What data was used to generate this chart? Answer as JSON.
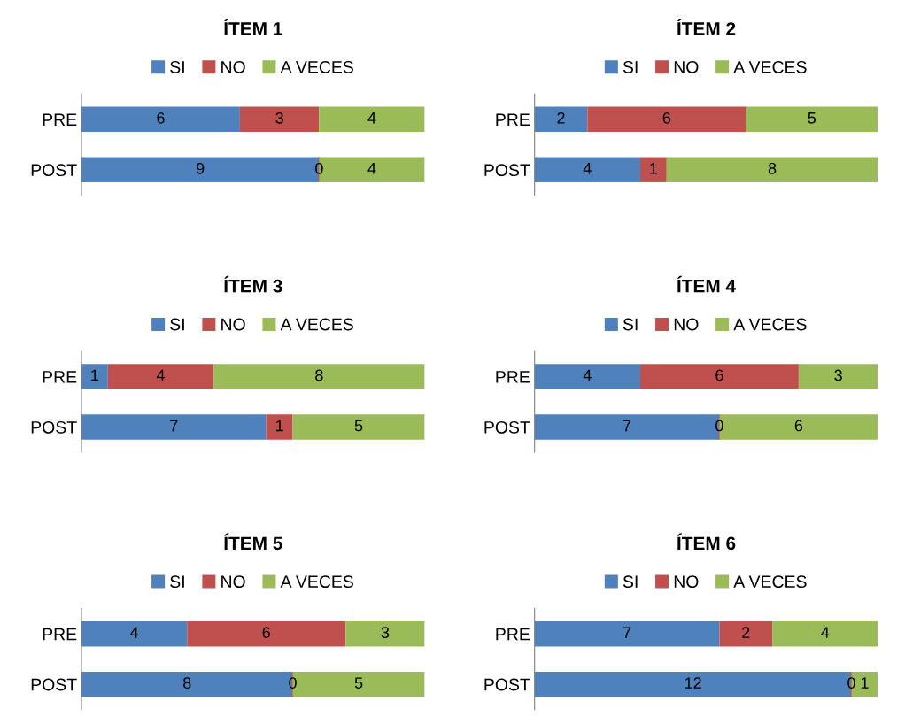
{
  "chart_data": [
    {
      "type": "bar",
      "title": "ÍTEM 1",
      "orientation": "horizontal",
      "stacked": true,
      "categories": [
        "PRE",
        "POST"
      ],
      "xlim": [
        0,
        13
      ],
      "tick_labels": "y",
      "data_labels": true,
      "legend": "top",
      "grid": false,
      "series": [
        {
          "name": "SI",
          "color": "#4f81bd",
          "values": [
            6,
            9
          ]
        },
        {
          "name": "NO",
          "color": "#c0504d",
          "values": [
            3,
            0
          ]
        },
        {
          "name": "A VECES",
          "color": "#9bbb59",
          "values": [
            4,
            4
          ]
        }
      ]
    },
    {
      "type": "bar",
      "title": "ÍTEM 2",
      "orientation": "horizontal",
      "stacked": true,
      "categories": [
        "PRE",
        "POST"
      ],
      "xlim": [
        0,
        13
      ],
      "tick_labels": "y",
      "data_labels": true,
      "legend": "top",
      "grid": false,
      "series": [
        {
          "name": "SI",
          "color": "#4f81bd",
          "values": [
            2,
            4
          ]
        },
        {
          "name": "NO",
          "color": "#c0504d",
          "values": [
            6,
            1
          ]
        },
        {
          "name": "A VECES",
          "color": "#9bbb59",
          "values": [
            5,
            8
          ]
        }
      ]
    },
    {
      "type": "bar",
      "title": "ÍTEM 3",
      "orientation": "horizontal",
      "stacked": true,
      "categories": [
        "PRE",
        "POST"
      ],
      "xlim": [
        0,
        13
      ],
      "tick_labels": "y",
      "data_labels": true,
      "legend": "top",
      "grid": false,
      "series": [
        {
          "name": "SI",
          "color": "#4f81bd",
          "values": [
            1,
            7
          ]
        },
        {
          "name": "NO",
          "color": "#c0504d",
          "values": [
            4,
            1
          ]
        },
        {
          "name": "A VECES",
          "color": "#9bbb59",
          "values": [
            8,
            5
          ]
        }
      ]
    },
    {
      "type": "bar",
      "title": "ÍTEM 4",
      "orientation": "horizontal",
      "stacked": true,
      "categories": [
        "PRE",
        "POST"
      ],
      "xlim": [
        0,
        13
      ],
      "tick_labels": "y",
      "data_labels": true,
      "legend": "top",
      "grid": false,
      "series": [
        {
          "name": "SI",
          "color": "#4f81bd",
          "values": [
            4,
            7
          ]
        },
        {
          "name": "NO",
          "color": "#c0504d",
          "values": [
            6,
            0
          ]
        },
        {
          "name": "A VECES",
          "color": "#9bbb59",
          "values": [
            3,
            6
          ]
        }
      ]
    },
    {
      "type": "bar",
      "title": "ÍTEM 5",
      "orientation": "horizontal",
      "stacked": true,
      "categories": [
        "PRE",
        "POST"
      ],
      "xlim": [
        0,
        13
      ],
      "tick_labels": "y",
      "data_labels": true,
      "legend": "top",
      "grid": false,
      "series": [
        {
          "name": "SI",
          "color": "#4f81bd",
          "values": [
            4,
            8
          ]
        },
        {
          "name": "NO",
          "color": "#c0504d",
          "values": [
            6,
            0
          ]
        },
        {
          "name": "A VECES",
          "color": "#9bbb59",
          "values": [
            3,
            5
          ]
        }
      ]
    },
    {
      "type": "bar",
      "title": "ÍTEM 6",
      "orientation": "horizontal",
      "stacked": true,
      "categories": [
        "PRE",
        "POST"
      ],
      "xlim": [
        0,
        13
      ],
      "tick_labels": "y",
      "data_labels": true,
      "legend": "top",
      "grid": false,
      "series": [
        {
          "name": "SI",
          "color": "#4f81bd",
          "values": [
            7,
            12
          ]
        },
        {
          "name": "NO",
          "color": "#c0504d",
          "values": [
            2,
            0
          ]
        },
        {
          "name": "A VECES",
          "color": "#9bbb59",
          "values": [
            4,
            1
          ]
        }
      ]
    }
  ]
}
